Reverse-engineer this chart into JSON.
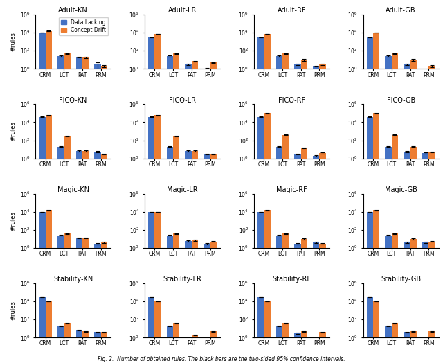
{
  "datasets": [
    "Adult",
    "FICO",
    "Magic",
    "Stability"
  ],
  "models": [
    "KN",
    "LR",
    "RF",
    "GB"
  ],
  "categories": [
    "CRM",
    "LCT",
    "PAT",
    "PRM"
  ],
  "legend_labels": [
    "Data Lacking",
    "Concept Drift"
  ],
  "colors": [
    "#4472C4",
    "#ED7D31"
  ],
  "ylabel": "#rules",
  "caption": "Fig. 2.  Number of obtained rules. The black bars are the two-sided 95% confidence intervals.",
  "data": {
    "Adult-KN": {
      "blue": [
        10000,
        25,
        20,
        3
      ],
      "orange": [
        15000,
        50,
        18,
        2
      ]
    },
    "Adult-LR": {
      "blue": [
        3000,
        25,
        3,
        1
      ],
      "orange": [
        7000,
        50,
        7,
        5
      ]
    },
    "Adult-RF": {
      "blue": [
        3000,
        25,
        3,
        2
      ],
      "orange": [
        7000,
        50,
        10,
        3
      ]
    },
    "Adult-GB": {
      "blue": [
        3000,
        25,
        3,
        null
      ],
      "orange": [
        10000,
        50,
        10,
        2
      ]
    },
    "FICO-KN": {
      "blue": [
        40000,
        20,
        7,
        6
      ],
      "orange": [
        60000,
        300,
        7,
        3
      ]
    },
    "FICO-LR": {
      "blue": [
        40000,
        20,
        7,
        3
      ],
      "orange": [
        60000,
        300,
        7,
        3
      ]
    },
    "FICO-RF": {
      "blue": [
        40000,
        20,
        3,
        2
      ],
      "orange": [
        100000,
        400,
        15,
        4
      ]
    },
    "FICO-GB": {
      "blue": [
        40000,
        20,
        6,
        4
      ],
      "orange": [
        100000,
        400,
        20,
        5
      ]
    },
    "Magic-KN": {
      "blue": [
        10000,
        25,
        12,
        3
      ],
      "orange": [
        15000,
        40,
        12,
        4
      ]
    },
    "Magic-LR": {
      "blue": [
        10000,
        25,
        6,
        3
      ],
      "orange": [
        10000,
        40,
        7,
        5
      ]
    },
    "Magic-RF": {
      "blue": [
        10000,
        25,
        3,
        4
      ],
      "orange": [
        15000,
        40,
        10,
        3
      ]
    },
    "Magic-GB": {
      "blue": [
        10000,
        25,
        4,
        4
      ],
      "orange": [
        15000,
        40,
        10,
        5
      ]
    },
    "Stability-KN": {
      "blue": [
        30000,
        20,
        7,
        4
      ],
      "orange": [
        10000,
        40,
        5,
        4
      ]
    },
    "Stability-LR": {
      "blue": [
        30000,
        20,
        null,
        null
      ],
      "orange": [
        10000,
        40,
        2,
        5
      ]
    },
    "Stability-RF": {
      "blue": [
        30000,
        20,
        3,
        null
      ],
      "orange": [
        10000,
        40,
        5,
        4
      ]
    },
    "Stability-GB": {
      "blue": [
        30000,
        20,
        4,
        null
      ],
      "orange": [
        10000,
        40,
        5,
        5
      ]
    }
  },
  "errors": {
    "Adult-KN": {
      "blue": [
        300,
        3,
        3,
        2
      ],
      "orange": [
        800,
        6,
        2,
        0.5
      ]
    },
    "Adult-LR": {
      "blue": [
        200,
        3,
        0.5,
        0.2
      ],
      "orange": [
        400,
        6,
        1,
        0.5
      ]
    },
    "Adult-RF": {
      "blue": [
        200,
        3,
        0.5,
        0.3
      ],
      "orange": [
        400,
        6,
        2,
        0.5
      ]
    },
    "Adult-GB": {
      "blue": [
        200,
        3,
        0.5,
        null
      ],
      "orange": [
        600,
        6,
        2,
        0.5
      ]
    },
    "FICO-KN": {
      "blue": [
        2000,
        2,
        1,
        1
      ],
      "orange": [
        3000,
        30,
        1,
        0.5
      ]
    },
    "FICO-LR": {
      "blue": [
        2000,
        2,
        1,
        0.5
      ],
      "orange": [
        3000,
        30,
        1,
        0.5
      ]
    },
    "FICO-RF": {
      "blue": [
        2000,
        2,
        0.5,
        0.3
      ],
      "orange": [
        5000,
        40,
        2,
        0.5
      ]
    },
    "FICO-GB": {
      "blue": [
        2000,
        2,
        1,
        0.5
      ],
      "orange": [
        5000,
        40,
        2,
        0.5
      ]
    },
    "Magic-KN": {
      "blue": [
        300,
        2,
        1,
        0.5
      ],
      "orange": [
        600,
        4,
        1,
        0.5
      ]
    },
    "Magic-LR": {
      "blue": [
        300,
        2,
        1,
        0.5
      ],
      "orange": [
        400,
        4,
        1,
        0.5
      ]
    },
    "Magic-RF": {
      "blue": [
        300,
        2,
        0.5,
        0.5
      ],
      "orange": [
        600,
        4,
        1,
        0.5
      ]
    },
    "Magic-GB": {
      "blue": [
        300,
        2,
        0.5,
        0.5
      ],
      "orange": [
        600,
        4,
        1,
        0.5
      ]
    },
    "Stability-KN": {
      "blue": [
        1500,
        2,
        1,
        0.5
      ],
      "orange": [
        600,
        4,
        0.5,
        0.5
      ]
    },
    "Stability-LR": {
      "blue": [
        1500,
        2,
        null,
        null
      ],
      "orange": [
        600,
        4,
        0.3,
        0.5
      ]
    },
    "Stability-RF": {
      "blue": [
        1500,
        2,
        0.5,
        null
      ],
      "orange": [
        600,
        4,
        0.5,
        0.5
      ]
    },
    "Stability-GB": {
      "blue": [
        1500,
        2,
        0.5,
        null
      ],
      "orange": [
        600,
        4,
        0.5,
        0.5
      ]
    }
  }
}
